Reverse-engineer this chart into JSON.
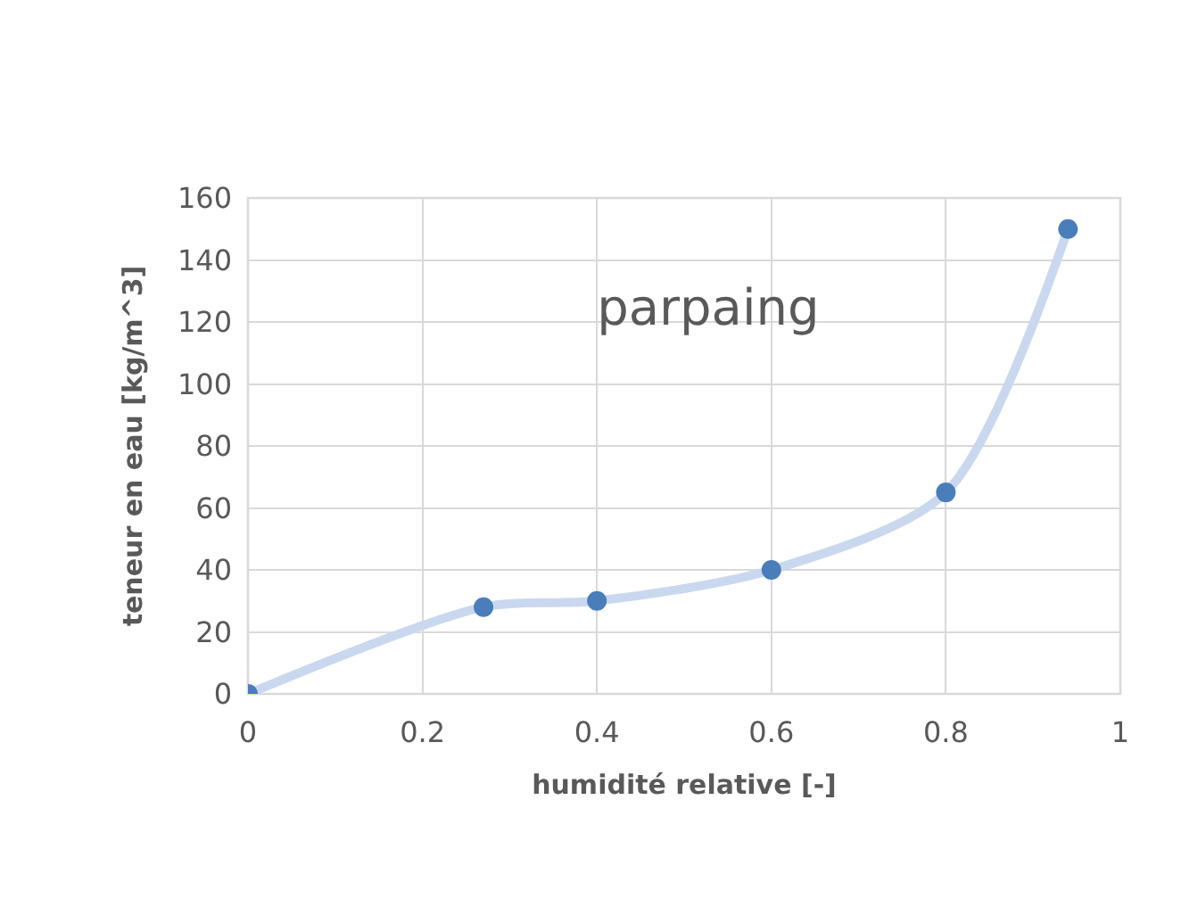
{
  "chart_data": {
    "type": "scatter",
    "title": "parpaing",
    "xlabel": "humidité relative [-]",
    "ylabel": "teneur en eau [kg/m^3]",
    "x": [
      0,
      0.27,
      0.4,
      0.6,
      0.8,
      0.94
    ],
    "series": [
      {
        "type": "line",
        "color": "#c9d8ee",
        "values": [
          0,
          28,
          30,
          40,
          65,
          150
        ],
        "marker": "none"
      },
      {
        "color": "#4a7ebb",
        "values": [
          0,
          28,
          30,
          40,
          65,
          150
        ],
        "marker": "circle"
      }
    ],
    "xlim": [
      0,
      1
    ],
    "xticks": [
      0,
      0.2,
      0.4,
      0.6,
      0.8,
      1
    ],
    "ylim": [
      0,
      160
    ],
    "yticks": [
      0,
      20,
      40,
      60,
      80,
      100,
      120,
      140,
      160
    ],
    "grid": true,
    "legend": false
  }
}
